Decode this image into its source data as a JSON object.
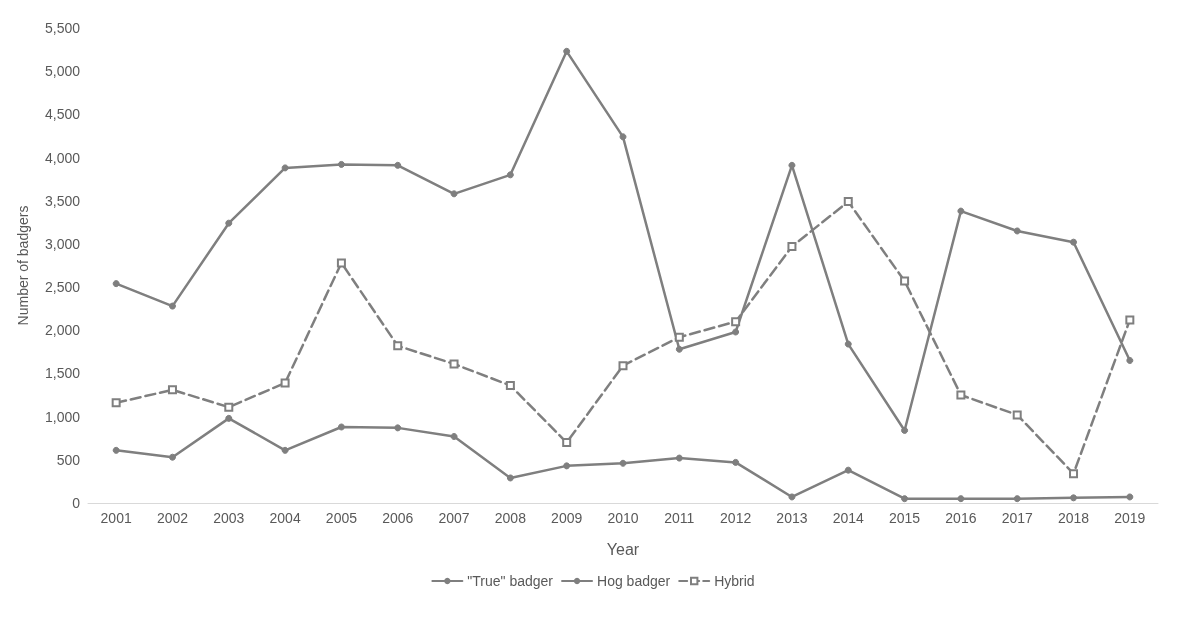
{
  "chart_data": {
    "type": "line",
    "xlabel": "Year",
    "ylabel": "Number of badgers",
    "categories": [
      "2001",
      "2002",
      "2003",
      "2004",
      "2005",
      "2006",
      "2007",
      "2008",
      "2009",
      "2010",
      "2011",
      "2012",
      "2013",
      "2014",
      "2015",
      "2016",
      "2017",
      "2018",
      "2019"
    ],
    "series": [
      {
        "name": "\"True\" badger",
        "color": "#7f7f7f",
        "marker": "circle",
        "line_style": "solid",
        "values": [
          2540,
          2280,
          3240,
          3880,
          3920,
          3910,
          3580,
          3800,
          5230,
          4240,
          1780,
          1980,
          3910,
          1840,
          840,
          3380,
          3150,
          3020,
          1650
        ]
      },
      {
        "name": "Hog badger",
        "color": "#7f7f7f",
        "marker": "circle",
        "line_style": "solid",
        "values": [
          610,
          530,
          980,
          610,
          880,
          870,
          770,
          290,
          430,
          460,
          520,
          470,
          70,
          380,
          50,
          50,
          50,
          60,
          70
        ]
      },
      {
        "name": "Hybrid",
        "color": "#7f7f7f",
        "marker": "square",
        "line_style": "dashed",
        "values": [
          1160,
          1310,
          1110,
          1390,
          2780,
          1820,
          1610,
          1360,
          700,
          1590,
          1920,
          2100,
          2970,
          3490,
          2570,
          1250,
          1020,
          340,
          2120
        ]
      }
    ],
    "ylim": [
      0,
      5500
    ],
    "yticks": [
      0,
      500,
      {
        "value": 1000,
        "label": "1,000"
      },
      {
        "value": 1500,
        "label": "1,500"
      },
      {
        "value": 2000,
        "label": "2,000"
      },
      {
        "value": 2500,
        "label": "2,500"
      },
      {
        "value": 3000,
        "label": "3,000"
      },
      {
        "value": 3500,
        "label": "3,500"
      },
      {
        "value": 4000,
        "label": "4,000"
      },
      {
        "value": 4500,
        "label": "4,500"
      },
      {
        "value": 5000,
        "label": "5,000"
      },
      {
        "value": 5500,
        "label": "5,500"
      }
    ],
    "grid": false,
    "legend": "bottom"
  }
}
